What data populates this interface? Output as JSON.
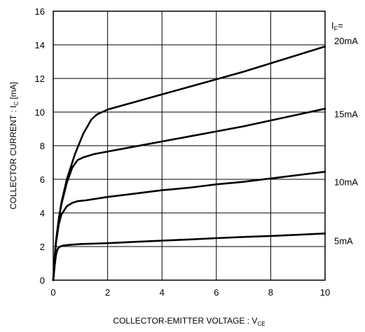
{
  "chart_data": {
    "type": "line",
    "xlabel": "COLLECTOR-EMITTER VOLTAGE : V",
    "xlabel_sub": "CE",
    "ylabel": "COLLECTOR CURRENT : I",
    "ylabel_sub": "C",
    "ylabel_unit": " [mA]",
    "legend_title": "I",
    "legend_title_sub": "F",
    "legend_title_suffix": "=",
    "xlim": [
      0,
      10
    ],
    "ylim": [
      0,
      16
    ],
    "xticks": [
      0,
      2,
      4,
      6,
      8,
      10
    ],
    "yticks": [
      0,
      2,
      4,
      6,
      8,
      10,
      12,
      14,
      16
    ],
    "xtick_labels": [
      "0",
      "2",
      "4",
      "6",
      "8",
      "10"
    ],
    "ytick_labels": [
      "0",
      "2",
      "4",
      "6",
      "8",
      "10",
      "12",
      "14",
      "16"
    ],
    "grid": true,
    "series": [
      {
        "name": "20mA",
        "x": [
          0,
          0.05,
          0.1,
          0.2,
          0.3,
          0.5,
          0.8,
          1.1,
          1.4,
          1.6,
          1.8,
          2,
          3,
          4,
          5,
          6,
          7,
          8,
          9,
          10
        ],
        "y": [
          0,
          1.2,
          2.3,
          3.6,
          4.6,
          6.0,
          7.5,
          8.7,
          9.55,
          9.85,
          10.0,
          10.15,
          10.6,
          11.05,
          11.5,
          11.95,
          12.4,
          12.9,
          13.4,
          13.9
        ]
      },
      {
        "name": "15mA",
        "x": [
          0,
          0.05,
          0.1,
          0.2,
          0.3,
          0.5,
          0.7,
          0.9,
          1.1,
          1.5,
          2,
          3,
          4,
          5,
          6,
          7,
          8,
          9,
          10
        ],
        "y": [
          0,
          1.2,
          2.3,
          3.6,
          4.5,
          5.8,
          6.7,
          7.15,
          7.3,
          7.5,
          7.65,
          7.95,
          8.25,
          8.55,
          8.85,
          9.15,
          9.5,
          9.85,
          10.2
        ]
      },
      {
        "name": "10mA",
        "x": [
          0,
          0.05,
          0.1,
          0.2,
          0.3,
          0.5,
          0.7,
          0.9,
          1.2,
          2,
          3,
          4,
          5,
          6,
          7,
          8,
          9,
          10
        ],
        "y": [
          0,
          1.2,
          2.2,
          3.3,
          3.9,
          4.4,
          4.6,
          4.7,
          4.75,
          4.95,
          5.15,
          5.35,
          5.5,
          5.7,
          5.85,
          6.05,
          6.25,
          6.45
        ]
      },
      {
        "name": "5mA",
        "x": [
          0,
          0.05,
          0.1,
          0.15,
          0.2,
          0.3,
          0.4,
          0.6,
          1,
          2,
          3,
          4,
          5,
          6,
          7,
          8,
          9,
          10
        ],
        "y": [
          0,
          0.8,
          1.5,
          1.8,
          1.95,
          2.03,
          2.07,
          2.1,
          2.15,
          2.2,
          2.28,
          2.35,
          2.42,
          2.5,
          2.57,
          2.63,
          2.7,
          2.78
        ]
      }
    ]
  }
}
